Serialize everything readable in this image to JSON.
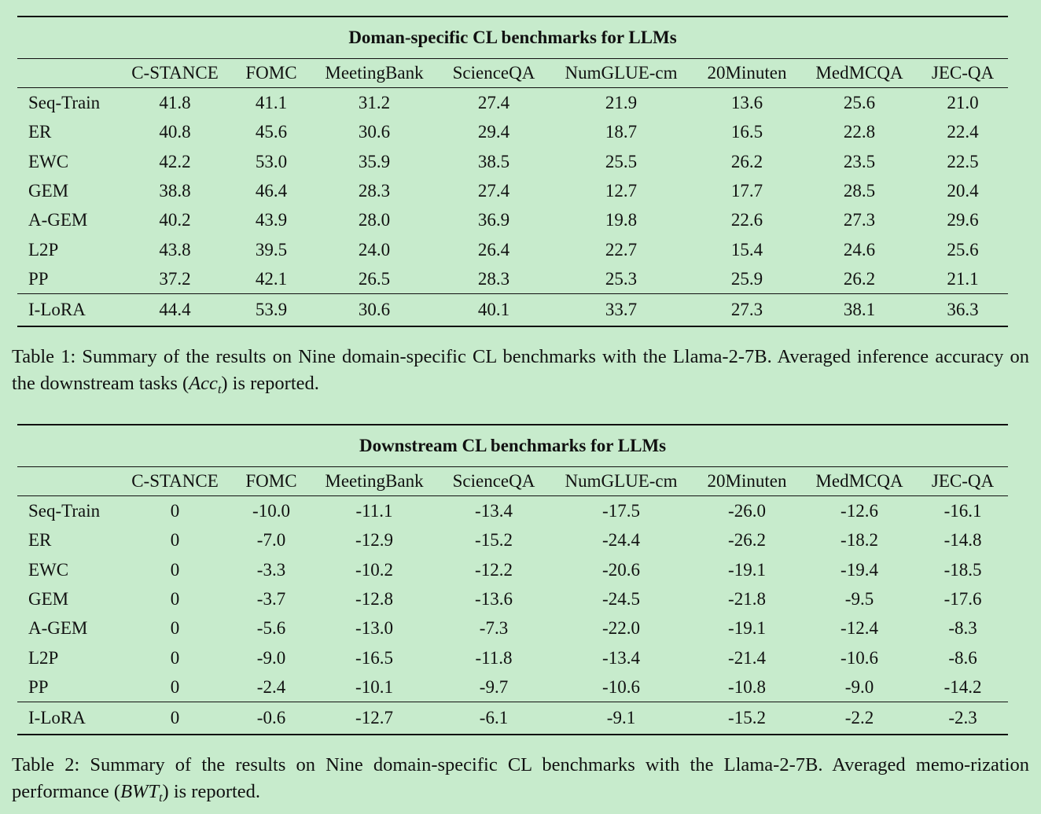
{
  "table1": {
    "title": "Doman-specific CL benchmarks for LLMs",
    "columns": [
      "",
      "C-STANCE",
      "FOMC",
      "MeetingBank",
      "ScienceQA",
      "NumGLUE-cm",
      "20Minuten",
      "MedMCQA",
      "JEC-QA"
    ],
    "rows": [
      {
        "method": "Seq-Train",
        "values": [
          "41.8",
          "41.1",
          "31.2",
          "27.4",
          "21.9",
          "13.6",
          "25.6",
          "21.0"
        ]
      },
      {
        "method": "ER",
        "values": [
          "40.8",
          "45.6",
          "30.6",
          "29.4",
          "18.7",
          "16.5",
          "22.8",
          "22.4"
        ]
      },
      {
        "method": "EWC",
        "values": [
          "42.2",
          "53.0",
          "35.9",
          "38.5",
          "25.5",
          "26.2",
          "23.5",
          "22.5"
        ]
      },
      {
        "method": "GEM",
        "values": [
          "38.8",
          "46.4",
          "28.3",
          "27.4",
          "12.7",
          "17.7",
          "28.5",
          "20.4"
        ]
      },
      {
        "method": "A-GEM",
        "values": [
          "40.2",
          "43.9",
          "28.0",
          "36.9",
          "19.8",
          "22.6",
          "27.3",
          "29.6"
        ]
      },
      {
        "method": "L2P",
        "values": [
          "43.8",
          "39.5",
          "24.0",
          "26.4",
          "22.7",
          "15.4",
          "24.6",
          "25.6"
        ]
      },
      {
        "method": "PP",
        "values": [
          "37.2",
          "42.1",
          "26.5",
          "28.3",
          "25.3",
          "25.9",
          "26.2",
          "21.1"
        ]
      },
      {
        "method": "I-LoRA",
        "values": [
          "44.4",
          "53.9",
          "30.6",
          "40.1",
          "33.7",
          "27.3",
          "38.1",
          "36.3"
        ]
      }
    ],
    "caption": {
      "label": "Table 1:",
      "text_before": "Summary of the results on Nine domain-specific CL benchmarks with the Llama-2-7B. Averaged inference accuracy on the downstream tasks (",
      "math_main": "Acc",
      "math_sub": "t",
      "text_after": ") is reported."
    }
  },
  "table2": {
    "title": "Downstream CL benchmarks for LLMs",
    "columns": [
      "",
      "C-STANCE",
      "FOMC",
      "MeetingBank",
      "ScienceQA",
      "NumGLUE-cm",
      "20Minuten",
      "MedMCQA",
      "JEC-QA"
    ],
    "rows": [
      {
        "method": "Seq-Train",
        "values": [
          "0",
          "-10.0",
          "-11.1",
          "-13.4",
          "-17.5",
          "-26.0",
          "-12.6",
          "-16.1"
        ]
      },
      {
        "method": "ER",
        "values": [
          "0",
          "-7.0",
          "-12.9",
          "-15.2",
          "-24.4",
          "-26.2",
          "-18.2",
          "-14.8"
        ]
      },
      {
        "method": "EWC",
        "values": [
          "0",
          "-3.3",
          "-10.2",
          "-12.2",
          "-20.6",
          "-19.1",
          "-19.4",
          "-18.5"
        ]
      },
      {
        "method": "GEM",
        "values": [
          "0",
          "-3.7",
          "-12.8",
          "-13.6",
          "-24.5",
          "-21.8",
          "-9.5",
          "-17.6"
        ]
      },
      {
        "method": "A-GEM",
        "values": [
          "0",
          "-5.6",
          "-13.0",
          "-7.3",
          "-22.0",
          "-19.1",
          "-12.4",
          "-8.3"
        ]
      },
      {
        "method": "L2P",
        "values": [
          "0",
          "-9.0",
          "-16.5",
          "-11.8",
          "-13.4",
          "-21.4",
          "-10.6",
          "-8.6"
        ]
      },
      {
        "method": "PP",
        "values": [
          "0",
          "-2.4",
          "-10.1",
          "-9.7",
          "-10.6",
          "-10.8",
          "-9.0",
          "-14.2"
        ]
      },
      {
        "method": "I-LoRA",
        "values": [
          "0",
          "-0.6",
          "-12.7",
          "-6.1",
          "-9.1",
          "-15.2",
          "-2.2",
          "-2.3"
        ]
      }
    ],
    "caption": {
      "label": "Table 2:",
      "text_before": "Summary of the results on Nine domain-specific CL benchmarks with the Llama-2-7B. Averaged memo-rization performance (",
      "math_main": "BWT",
      "math_sub": "t",
      "text_after": ") is reported."
    }
  }
}
